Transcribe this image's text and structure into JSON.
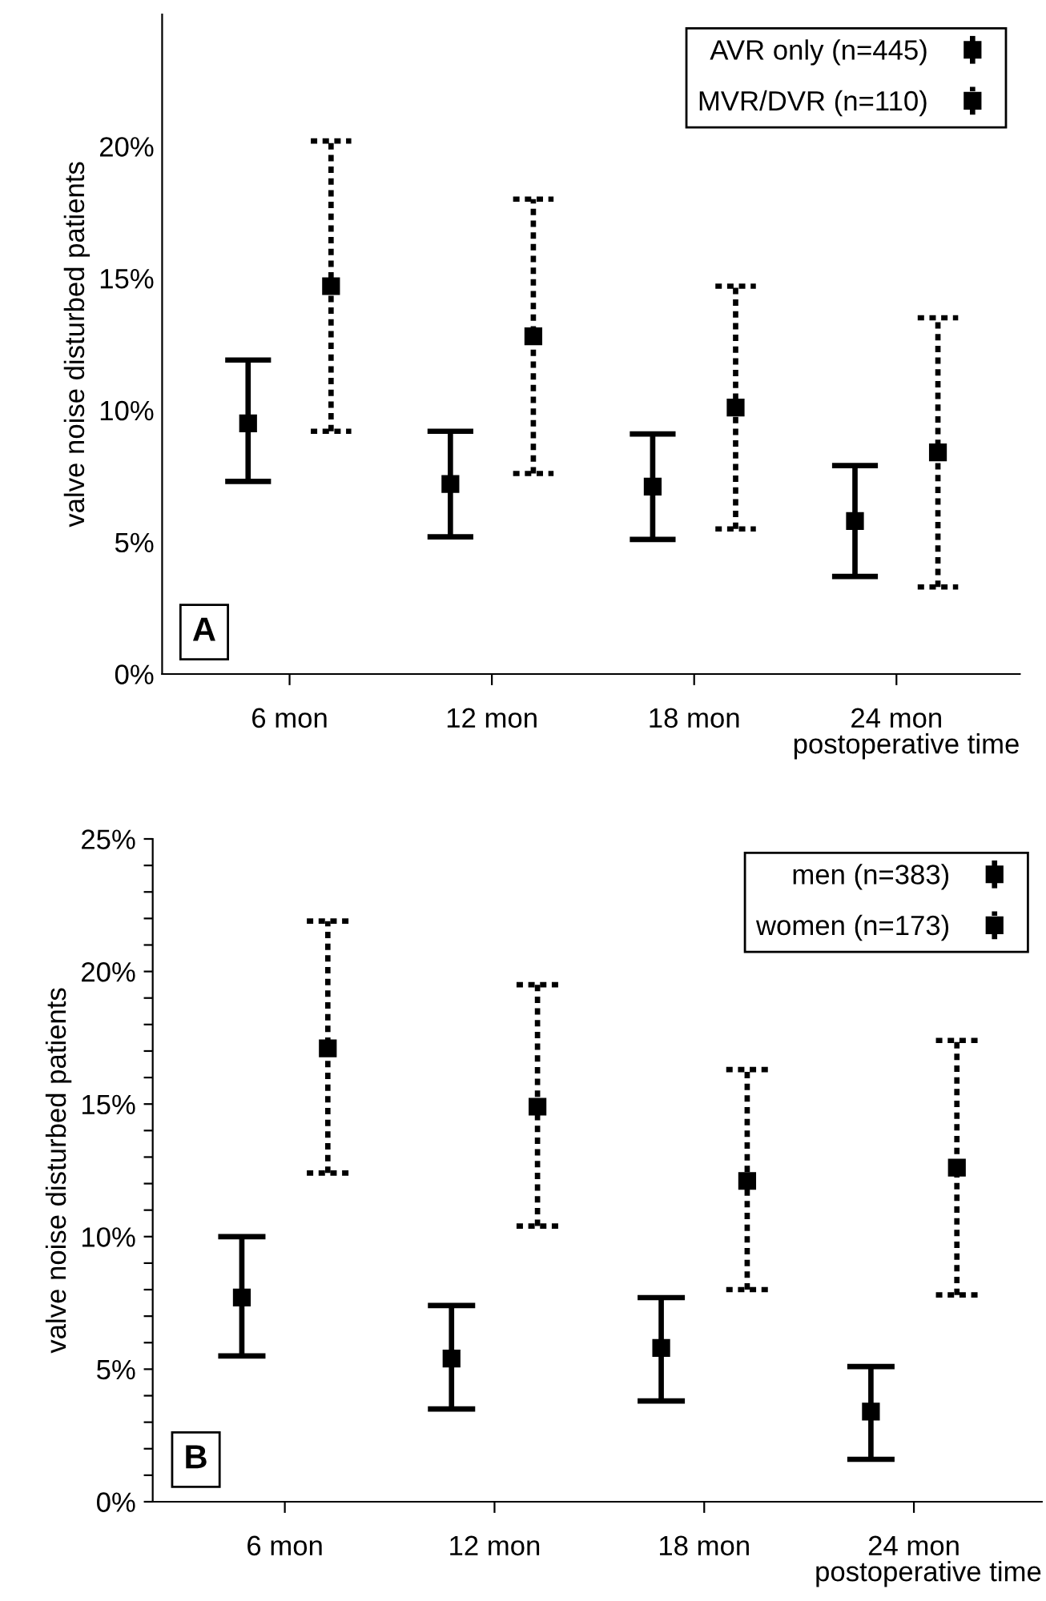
{
  "chart_data": [
    {
      "type": "scatter",
      "categories": [
        "6 mon",
        "12 mon",
        "18 mon",
        "24 mon"
      ],
      "xlabel": "postoperative time",
      "ylabel": "valve noise disturbed patients",
      "ylim": [
        0,
        25
      ],
      "yticks": [
        {
          "value": 0,
          "label": "0%"
        },
        {
          "value": 5,
          "label": "5%"
        },
        {
          "value": 10,
          "label": "10%"
        },
        {
          "value": 15,
          "label": "15%"
        },
        {
          "value": 20,
          "label": "20%"
        }
      ],
      "marker": "square",
      "legend": "top right",
      "annotations": [
        "A"
      ],
      "series": [
        {
          "name": "AVR only (n=445)",
          "color": "#000000",
          "line_style": "solid",
          "values": [
            9.5,
            7.2,
            7.1,
            5.8
          ],
          "errors": [
            [
              7.3,
              11.9
            ],
            [
              5.2,
              9.2
            ],
            [
              5.1,
              9.1
            ],
            [
              3.7,
              7.9
            ]
          ]
        },
        {
          "name": "MVR/DVR (n=110)",
          "color": "#000000",
          "line_style": "dotted",
          "values": [
            14.7,
            12.8,
            10.1,
            8.4
          ],
          "errors": [
            [
              9.2,
              20.2
            ],
            [
              7.6,
              18.0
            ],
            [
              5.5,
              14.7
            ],
            [
              3.3,
              13.5
            ]
          ]
        }
      ]
    },
    {
      "type": "scatter",
      "categories": [
        "6 mon",
        "12 mon",
        "18 mon",
        "24 mon"
      ],
      "xlabel": "postoperative time",
      "ylabel": "valve noise disturbed patients",
      "ylim": [
        0,
        25
      ],
      "yticks": [
        {
          "value": 0,
          "label": "0%"
        },
        {
          "value": 1,
          "label": null
        },
        {
          "value": 2,
          "label": null
        },
        {
          "value": 3,
          "label": null
        },
        {
          "value": 4,
          "label": null
        },
        {
          "value": 5,
          "label": "5%"
        },
        {
          "value": 6,
          "label": null
        },
        {
          "value": 7,
          "label": null
        },
        {
          "value": 8,
          "label": null
        },
        {
          "value": 9,
          "label": null
        },
        {
          "value": 10,
          "label": "10%"
        },
        {
          "value": 11,
          "label": null
        },
        {
          "value": 12,
          "label": null
        },
        {
          "value": 13,
          "label": null
        },
        {
          "value": 14,
          "label": null
        },
        {
          "value": 15,
          "label": "15%"
        },
        {
          "value": 16,
          "label": null
        },
        {
          "value": 17,
          "label": null
        },
        {
          "value": 18,
          "label": null
        },
        {
          "value": 19,
          "label": null
        },
        {
          "value": 20,
          "label": "20%"
        },
        {
          "value": 21,
          "label": null
        },
        {
          "value": 22,
          "label": null
        },
        {
          "value": 23,
          "label": null
        },
        {
          "value": 24,
          "label": null
        },
        {
          "value": 25,
          "label": "25%"
        }
      ],
      "marker": "square",
      "legend": "top right",
      "annotations": [
        "B"
      ],
      "series": [
        {
          "name": "men (n=383)",
          "color": "#000000",
          "line_style": "solid",
          "values": [
            7.7,
            5.4,
            5.8,
            3.4
          ],
          "errors": [
            [
              5.5,
              10.0
            ],
            [
              3.5,
              7.4
            ],
            [
              3.8,
              7.7
            ],
            [
              1.6,
              5.1
            ]
          ]
        },
        {
          "name": "women (n=173)",
          "color": "#000000",
          "line_style": "dotted",
          "values": [
            17.1,
            14.9,
            12.1,
            12.6
          ],
          "errors": [
            [
              12.4,
              21.9
            ],
            [
              10.4,
              19.5
            ],
            [
              8.0,
              16.3
            ],
            [
              7.8,
              17.4
            ]
          ]
        }
      ]
    }
  ]
}
